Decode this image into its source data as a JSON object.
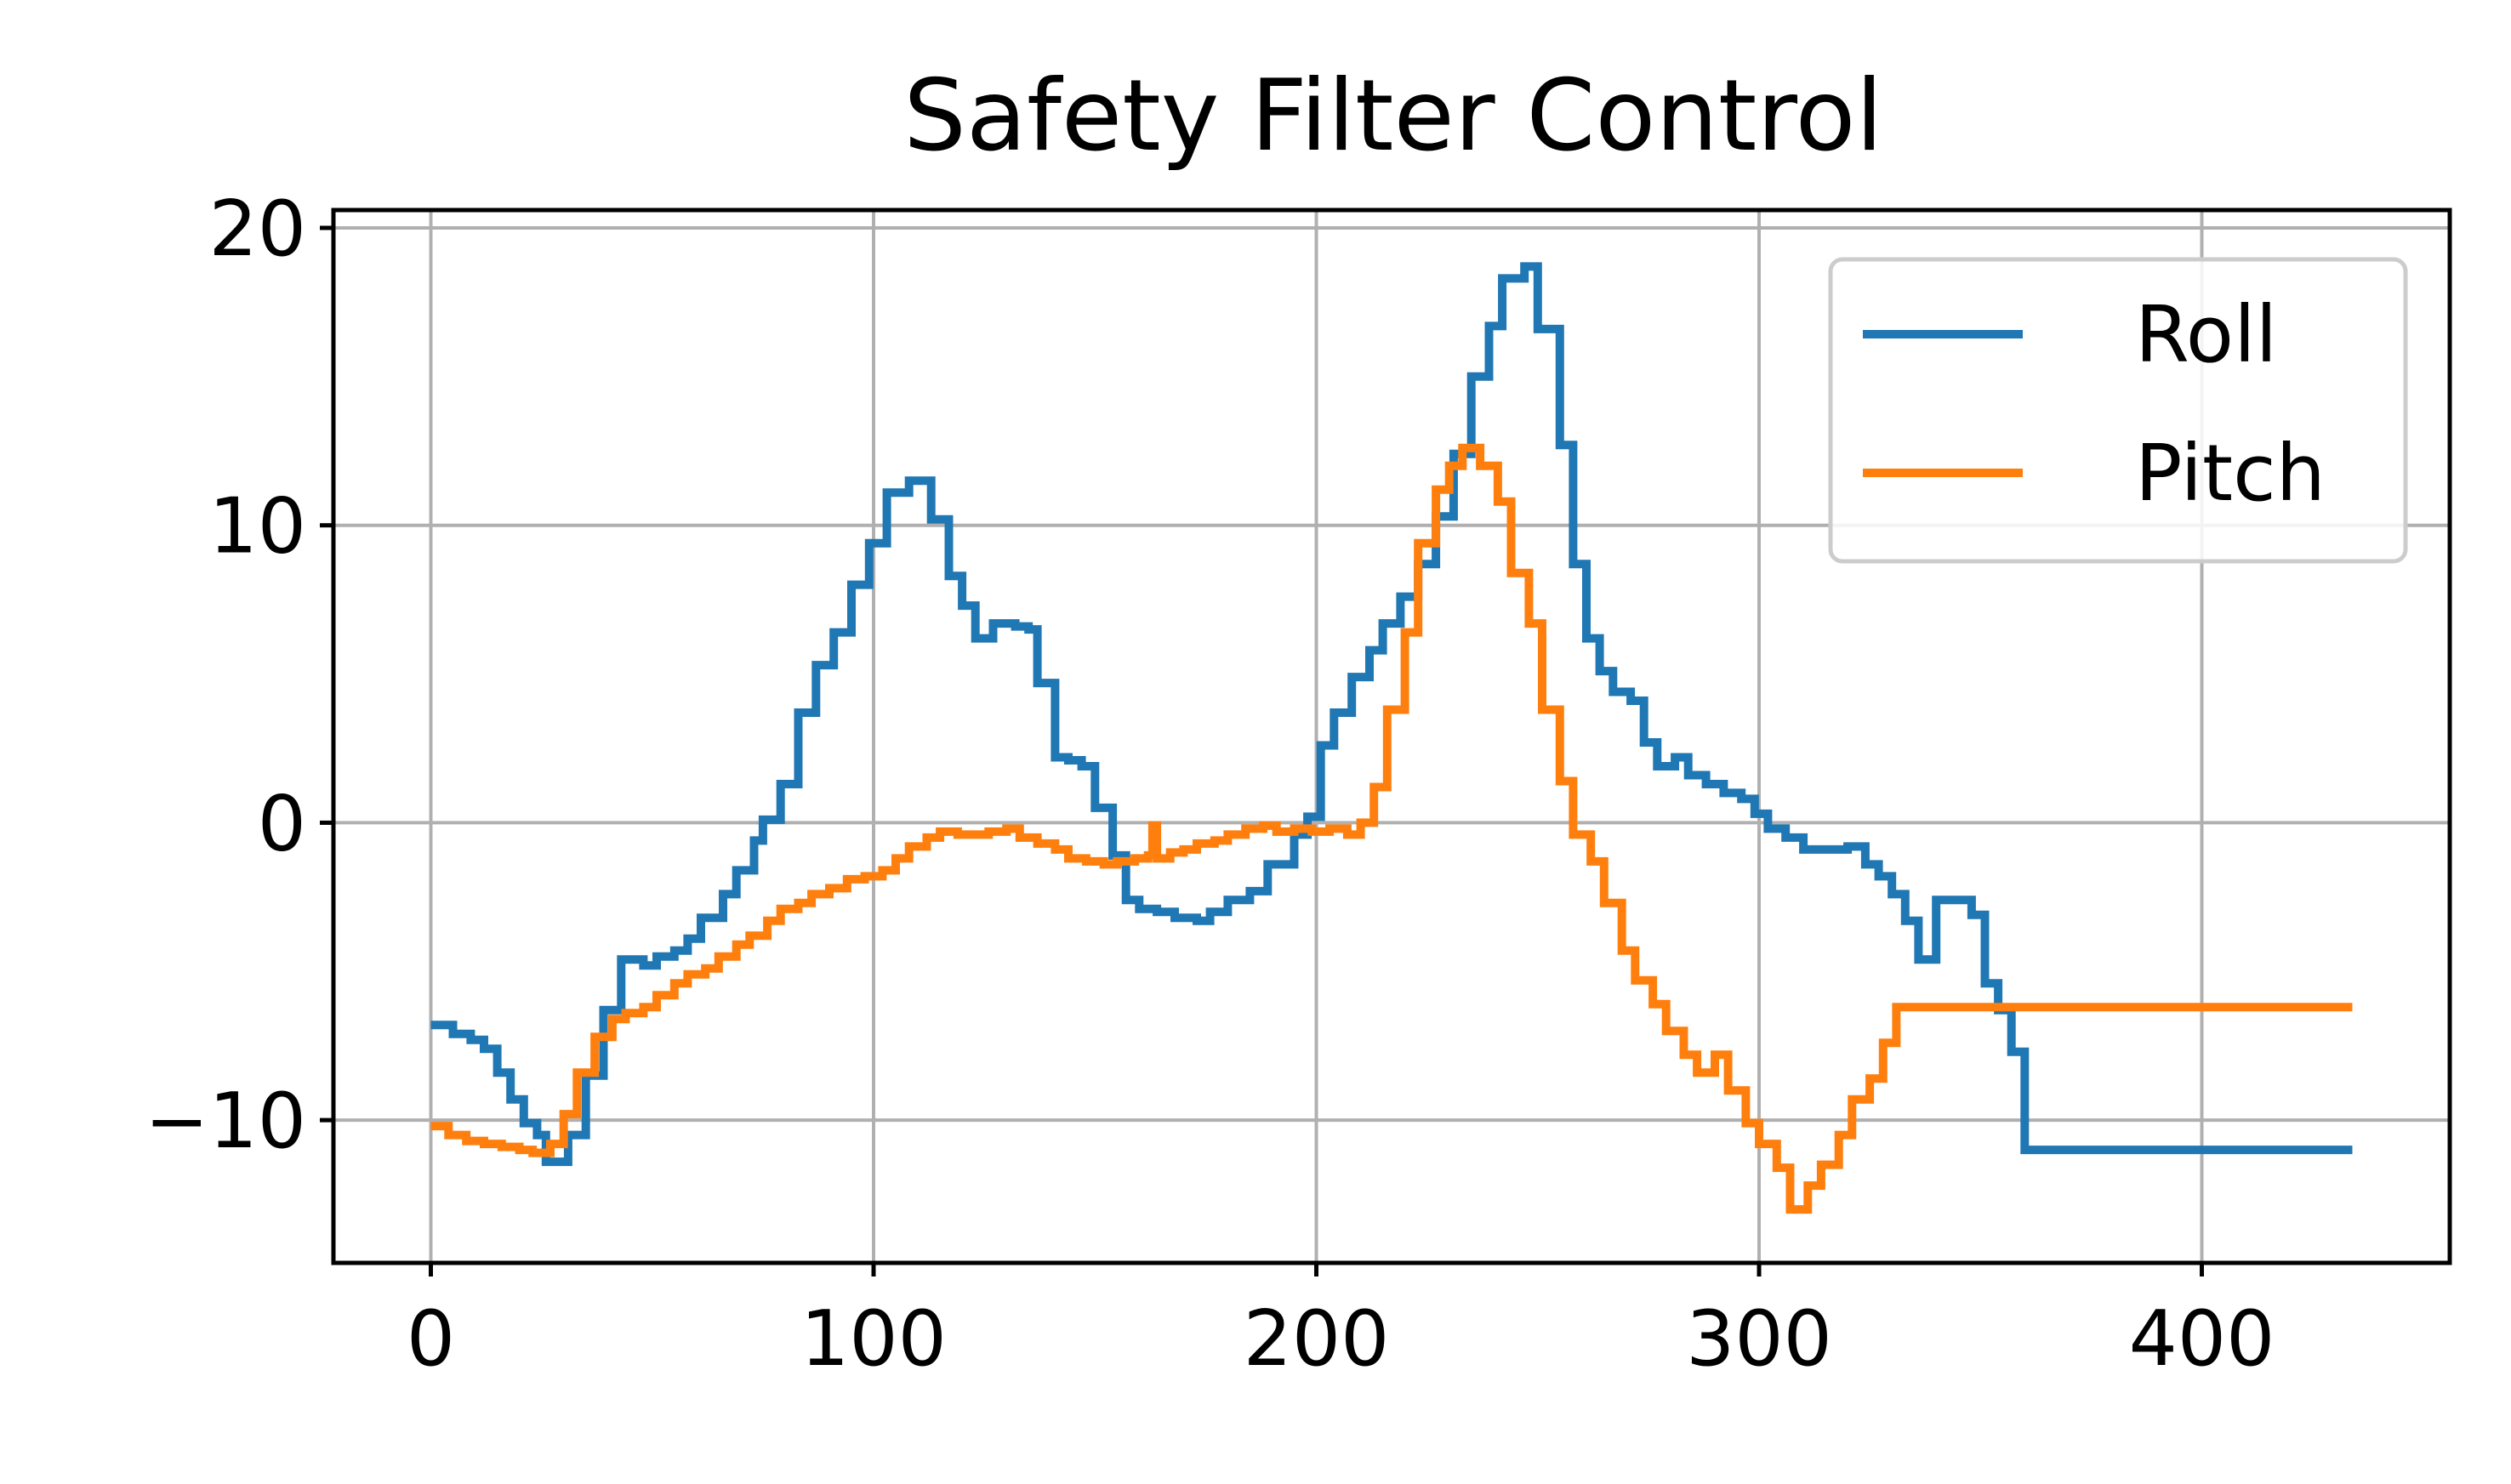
{
  "chart_data": {
    "type": "line",
    "title": "Safety Filter Control",
    "xlabel": "",
    "ylabel": "",
    "xlim": [
      -22,
      456
    ],
    "ylim": [
      -14.8,
      20.6
    ],
    "grid": true,
    "legend_position": "top-right",
    "x_ticks": [
      0,
      100,
      200,
      300,
      400
    ],
    "y_ticks": [
      -10,
      0,
      10,
      20
    ],
    "x_tick_labels": [
      "0",
      "100",
      "200",
      "300",
      "400"
    ],
    "y_tick_labels": [
      "−10",
      "0",
      "10",
      "20"
    ],
    "series": [
      {
        "name": "Roll",
        "color": "#1f77b4",
        "step": true,
        "points": [
          [
            0,
            -6.8
          ],
          [
            5,
            -7.1
          ],
          [
            9,
            -7.3
          ],
          [
            12,
            -7.6
          ],
          [
            15,
            -8.4
          ],
          [
            18,
            -9.3
          ],
          [
            21,
            -10.1
          ],
          [
            24,
            -10.5
          ],
          [
            26,
            -11.4
          ],
          [
            31,
            -10.5
          ],
          [
            35,
            -8.5
          ],
          [
            39,
            -6.3
          ],
          [
            43,
            -4.6
          ],
          [
            48,
            -4.8
          ],
          [
            51,
            -4.5
          ],
          [
            55,
            -4.3
          ],
          [
            58,
            -3.9
          ],
          [
            61,
            -3.2
          ],
          [
            66,
            -2.4
          ],
          [
            69,
            -1.6
          ],
          [
            73,
            -0.6
          ],
          [
            75,
            0.1
          ],
          [
            79,
            1.3
          ],
          [
            83,
            3.7
          ],
          [
            87,
            5.3
          ],
          [
            91,
            6.4
          ],
          [
            95,
            8.0
          ],
          [
            99,
            9.4
          ],
          [
            103,
            11.1
          ],
          [
            108,
            11.5
          ],
          [
            113,
            10.2
          ],
          [
            117,
            8.3
          ],
          [
            120,
            7.3
          ],
          [
            123,
            6.2
          ],
          [
            127,
            6.7
          ],
          [
            132,
            6.6
          ],
          [
            135,
            6.5
          ],
          [
            137,
            4.7
          ],
          [
            141,
            2.2
          ],
          [
            144,
            2.1
          ],
          [
            147,
            1.9
          ],
          [
            150,
            0.5
          ],
          [
            154,
            -1.1
          ],
          [
            157,
            -2.6
          ],
          [
            160,
            -2.9
          ],
          [
            164,
            -3.0
          ],
          [
            168,
            -3.2
          ],
          [
            173,
            -3.3
          ],
          [
            176,
            -3.0
          ],
          [
            180,
            -2.6
          ],
          [
            185,
            -2.3
          ],
          [
            189,
            -1.4
          ],
          [
            195,
            -0.4
          ],
          [
            198,
            0.2
          ],
          [
            201,
            2.6
          ],
          [
            204,
            3.7
          ],
          [
            208,
            4.9
          ],
          [
            212,
            5.8
          ],
          [
            215,
            6.7
          ],
          [
            219,
            7.6
          ],
          [
            223,
            8.7
          ],
          [
            227,
            10.3
          ],
          [
            231,
            12.4
          ],
          [
            235,
            15.0
          ],
          [
            239,
            16.7
          ],
          [
            242,
            18.3
          ],
          [
            247,
            18.7
          ],
          [
            250,
            16.6
          ],
          [
            255,
            12.7
          ],
          [
            258,
            8.7
          ],
          [
            261,
            6.2
          ],
          [
            264,
            5.1
          ],
          [
            267,
            4.4
          ],
          [
            271,
            4.1
          ],
          [
            274,
            2.7
          ],
          [
            277,
            1.9
          ],
          [
            281,
            2.2
          ],
          [
            284,
            1.6
          ],
          [
            288,
            1.3
          ],
          [
            292,
            1.0
          ],
          [
            296,
            0.8
          ],
          [
            299,
            0.3
          ],
          [
            302,
            -0.2
          ],
          [
            306,
            -0.5
          ],
          [
            310,
            -0.9
          ],
          [
            320,
            -0.8
          ],
          [
            324,
            -1.4
          ],
          [
            327,
            -1.8
          ],
          [
            330,
            -2.4
          ],
          [
            333,
            -3.3
          ],
          [
            336,
            -4.6
          ],
          [
            340,
            -2.6
          ],
          [
            348,
            -3.1
          ],
          [
            351,
            -5.4
          ],
          [
            354,
            -6.3
          ],
          [
            357,
            -7.7
          ],
          [
            360,
            -11.0
          ],
          [
            434,
            -11.0
          ]
        ]
      },
      {
        "name": "Pitch",
        "color": "#ff7f0e",
        "step": true,
        "points": [
          [
            0,
            -10.2
          ],
          [
            4,
            -10.5
          ],
          [
            8,
            -10.7
          ],
          [
            12,
            -10.8
          ],
          [
            16,
            -10.9
          ],
          [
            20,
            -11.0
          ],
          [
            23,
            -11.1
          ],
          [
            27,
            -10.8
          ],
          [
            30,
            -9.8
          ],
          [
            33,
            -8.4
          ],
          [
            37,
            -7.2
          ],
          [
            41,
            -6.6
          ],
          [
            44,
            -6.4
          ],
          [
            48,
            -6.2
          ],
          [
            51,
            -5.8
          ],
          [
            55,
            -5.4
          ],
          [
            58,
            -5.1
          ],
          [
            62,
            -4.9
          ],
          [
            65,
            -4.5
          ],
          [
            69,
            -4.1
          ],
          [
            72,
            -3.8
          ],
          [
            76,
            -3.3
          ],
          [
            79,
            -2.9
          ],
          [
            83,
            -2.7
          ],
          [
            86,
            -2.4
          ],
          [
            90,
            -2.2
          ],
          [
            94,
            -1.9
          ],
          [
            98,
            -1.8
          ],
          [
            102,
            -1.6
          ],
          [
            105,
            -1.2
          ],
          [
            108,
            -0.8
          ],
          [
            112,
            -0.5
          ],
          [
            115,
            -0.3
          ],
          [
            119,
            -0.4
          ],
          [
            123,
            -0.4
          ],
          [
            126,
            -0.3
          ],
          [
            130,
            -0.2
          ],
          [
            133,
            -0.5
          ],
          [
            137,
            -0.7
          ],
          [
            141,
            -0.9
          ],
          [
            144,
            -1.2
          ],
          [
            148,
            -1.3
          ],
          [
            152,
            -1.4
          ],
          [
            155,
            -1.3
          ],
          [
            159,
            -1.2
          ],
          [
            162,
            -1.1
          ],
          [
            163,
            -0.1
          ],
          [
            164,
            -1.2
          ],
          [
            167,
            -1.0
          ],
          [
            170,
            -0.9
          ],
          [
            173,
            -0.7
          ],
          [
            177,
            -0.6
          ],
          [
            180,
            -0.4
          ],
          [
            184,
            -0.2
          ],
          [
            188,
            -0.1
          ],
          [
            191,
            -0.3
          ],
          [
            195,
            -0.2
          ],
          [
            199,
            -0.3
          ],
          [
            203,
            -0.2
          ],
          [
            207,
            -0.4
          ],
          [
            210,
            0.0
          ],
          [
            213,
            1.2
          ],
          [
            216,
            3.8
          ],
          [
            220,
            6.4
          ],
          [
            223,
            9.4
          ],
          [
            227,
            11.2
          ],
          [
            230,
            12.0
          ],
          [
            233,
            12.6
          ],
          [
            237,
            12.0
          ],
          [
            241,
            10.8
          ],
          [
            244,
            8.4
          ],
          [
            248,
            6.7
          ],
          [
            251,
            3.8
          ],
          [
            255,
            1.4
          ],
          [
            258,
            -0.4
          ],
          [
            262,
            -1.3
          ],
          [
            265,
            -2.7
          ],
          [
            269,
            -4.3
          ],
          [
            272,
            -5.3
          ],
          [
            276,
            -6.1
          ],
          [
            279,
            -7.0
          ],
          [
            283,
            -7.8
          ],
          [
            286,
            -8.4
          ],
          [
            290,
            -7.8
          ],
          [
            293,
            -9.0
          ],
          [
            297,
            -10.1
          ],
          [
            300,
            -10.8
          ],
          [
            304,
            -11.6
          ],
          [
            307,
            -13.0
          ],
          [
            311,
            -12.2
          ],
          [
            314,
            -11.5
          ],
          [
            318,
            -10.5
          ],
          [
            321,
            -9.3
          ],
          [
            325,
            -8.6
          ],
          [
            328,
            -7.4
          ],
          [
            331,
            -6.2
          ],
          [
            434,
            -6.2
          ]
        ]
      }
    ]
  }
}
